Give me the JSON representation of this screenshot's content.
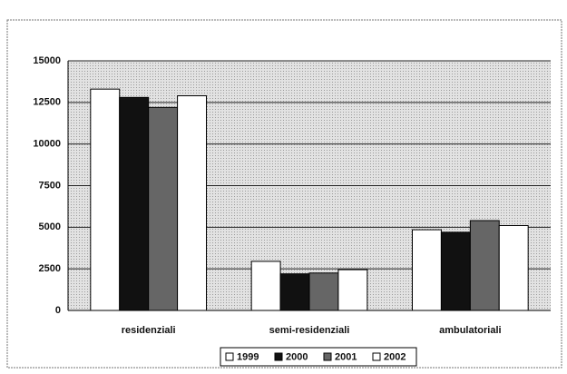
{
  "chart_data": {
    "type": "bar",
    "categories": [
      "residenziali",
      "semi-residenziali",
      "ambulatoriali"
    ],
    "series": [
      {
        "name": "1999",
        "color": "#ffffff",
        "values": [
          13300,
          2950,
          4850
        ]
      },
      {
        "name": "2000",
        "color": "#111111",
        "values": [
          12800,
          2200,
          4700
        ]
      },
      {
        "name": "2001",
        "color": "#666666",
        "values": [
          12200,
          2250,
          5400
        ]
      },
      {
        "name": "2002",
        "color": "#ffffff",
        "values": [
          12900,
          2450,
          5100
        ]
      }
    ],
    "ylim": [
      0,
      15000
    ],
    "yticks": [
      0,
      2500,
      5000,
      7500,
      10000,
      12500,
      15000
    ],
    "grid": true,
    "legend": "bottom"
  }
}
